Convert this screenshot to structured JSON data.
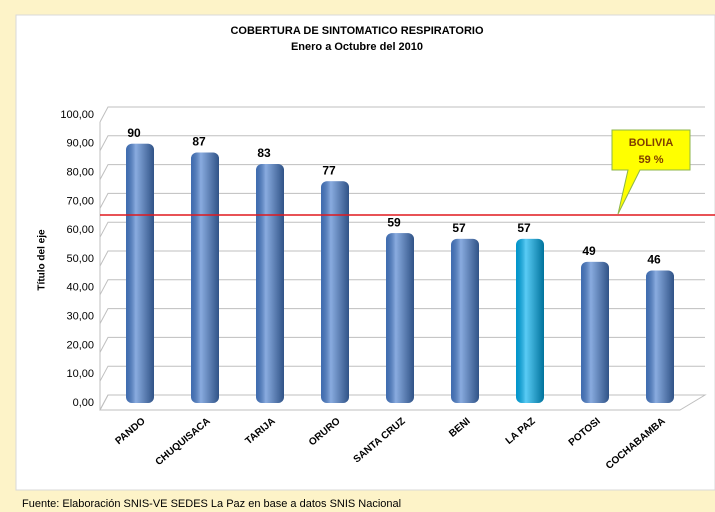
{
  "chart_data": {
    "type": "bar",
    "title": "COBERTURA DE SINTOMATICO RESPIRATORIO",
    "subtitle": "Enero a Octubre del 2010",
    "y_label": "Título del eje",
    "categories": [
      "PANDO",
      "CHUQUISACA",
      "TARIJA",
      "ORURO",
      "SANTA CRUZ",
      "BENI",
      "LA PAZ",
      "POTOSI",
      "COCHABAMBA"
    ],
    "values": [
      90,
      87,
      83,
      77,
      59,
      57,
      57,
      49,
      46
    ],
    "colors": [
      "#4a7fcf",
      "#4a7fcf",
      "#4a7fcf",
      "#4a7fcf",
      "#4a7fcf",
      "#4a7fcf",
      "#00b0f0",
      "#4a7fcf",
      "#4a7fcf"
    ],
    "ylim": [
      0,
      100
    ],
    "yticks": [
      {
        "value": 0,
        "label": "0,00"
      },
      {
        "value": 10,
        "label": "10,00"
      },
      {
        "value": 20,
        "label": "20,00"
      },
      {
        "value": 30,
        "label": "30,00"
      },
      {
        "value": 40,
        "label": "40,00"
      },
      {
        "value": 50,
        "label": "50,00"
      },
      {
        "value": 60,
        "label": "60,00"
      },
      {
        "value": 70,
        "label": "70,00"
      },
      {
        "value": 80,
        "label": "80,00"
      },
      {
        "value": 90,
        "label": "90,00"
      },
      {
        "value": 100,
        "label": "100,00"
      }
    ],
    "grid": true,
    "annotation": {
      "title": "BOLIVIA",
      "text": "59 %"
    },
    "source": "Fuente: Elaboración SNIS-VE SEDES La Paz en base a datos SNIS Nacional"
  }
}
